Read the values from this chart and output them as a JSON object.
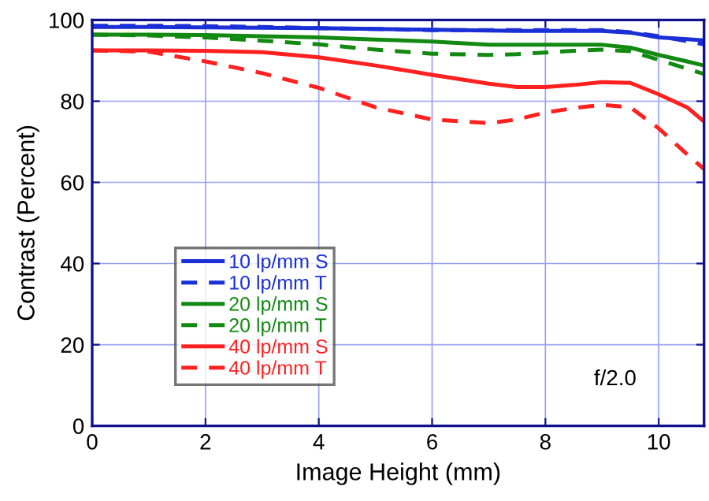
{
  "chart_data": {
    "type": "line",
    "xlabel": "Image Height (mm)",
    "ylabel": "Contrast (Percent)",
    "x": [
      0,
      1,
      2,
      3,
      4,
      5,
      6,
      7,
      7.5,
      8,
      8.5,
      9,
      9.5,
      10,
      10.5,
      10.8
    ],
    "series": [
      {
        "name": "10 lp/mm S",
        "color": "#1a2fd6",
        "line_style": "solid",
        "values": [
          98.3,
          98.3,
          98.2,
          98.1,
          98,
          97.8,
          97.6,
          97.4,
          97.3,
          97.3,
          97.3,
          97.3,
          96.9,
          95.7,
          95.3,
          95
        ]
      },
      {
        "name": "10 lp/mm T",
        "color": "#1a2fd6",
        "line_style": "dashed",
        "values": [
          98.6,
          98.6,
          98.5,
          98.3,
          98,
          97.8,
          97.5,
          97.5,
          97.5,
          97.5,
          97.5,
          97.5,
          97,
          96,
          94.8,
          94
        ]
      },
      {
        "name": "20 lp/mm S",
        "color": "#128a12",
        "line_style": "solid",
        "values": [
          96.4,
          96.4,
          96.3,
          96,
          95.7,
          95.2,
          94.7,
          93.9,
          93.9,
          93.9,
          93.9,
          93.9,
          93.2,
          91.4,
          89.8,
          88.8
        ]
      },
      {
        "name": "20 lp/mm T",
        "color": "#128a12",
        "line_style": "dashed",
        "values": [
          96.4,
          96.2,
          95.7,
          94.9,
          94,
          92.7,
          91.7,
          91.4,
          91.6,
          92,
          92.4,
          92.7,
          92.3,
          90.2,
          88,
          86.7
        ]
      },
      {
        "name": "40 lp/mm S",
        "color": "#ff2020",
        "line_style": "solid",
        "values": [
          92.5,
          92.5,
          92.4,
          92.1,
          90.8,
          88.8,
          86.5,
          84.3,
          83.5,
          83.5,
          84,
          84.7,
          84.5,
          81.7,
          78.5,
          75
        ]
      },
      {
        "name": "40 lp/mm T",
        "color": "#ff2020",
        "line_style": "dashed",
        "values": [
          92.5,
          92.2,
          89.8,
          86.9,
          83.3,
          78.5,
          75.5,
          74.6,
          75.5,
          77.2,
          78.3,
          79.1,
          78.5,
          73.3,
          66.9,
          63.3
        ]
      }
    ],
    "xlim": [
      0,
      10.8
    ],
    "xticks": [
      0,
      2,
      4,
      6,
      8,
      10
    ],
    "ylim": [
      0,
      100
    ],
    "yticks": [
      0,
      20,
      40,
      60,
      80,
      100
    ],
    "grid": true,
    "legend": "center left",
    "annotations": [
      "f/2.0"
    ]
  }
}
